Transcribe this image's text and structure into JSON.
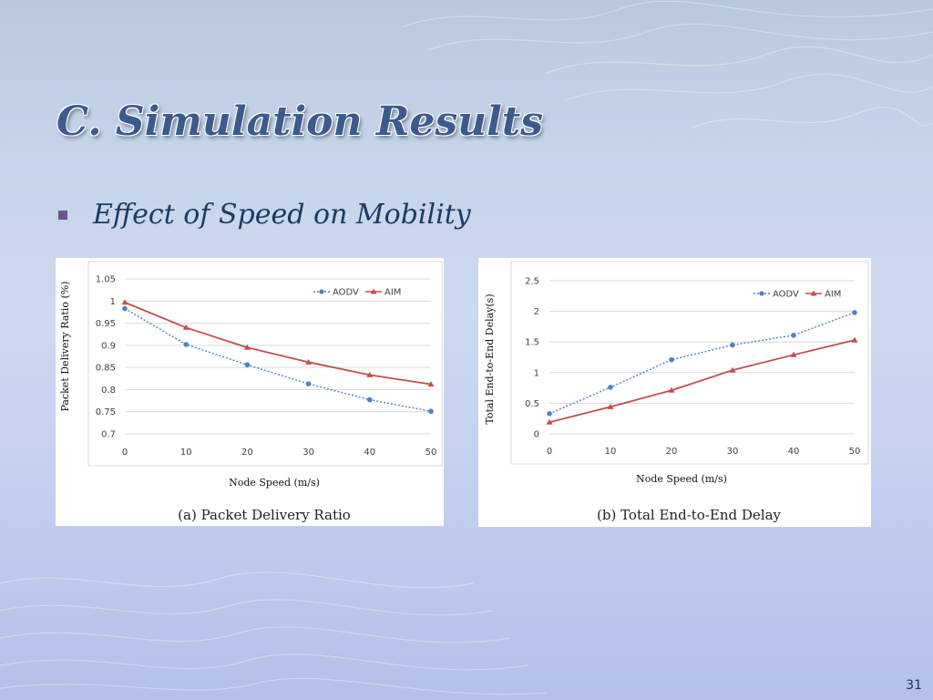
{
  "slide": {
    "title": "C. Simulation Results",
    "bullet": "Effect of Speed on Mobility",
    "page_number": "31"
  },
  "colors": {
    "title": "#3d5a8c",
    "bullet_marker": "#6a5590",
    "aodv": "#4f81bd",
    "aim": "#c0504d"
  },
  "chart_data": [
    {
      "type": "line",
      "caption": "(a)   Packet Delivery Ratio",
      "xlabel": "Node Speed (m/s)",
      "ylabel": "Packet Delivery Ratio (%)",
      "x": [
        0,
        10,
        20,
        30,
        40,
        50
      ],
      "ylim": [
        0.7,
        1.05
      ],
      "yticks": [
        "0.7",
        "0.75",
        "0.8",
        "0.85",
        "0.9",
        "0.95",
        "1",
        "1.05"
      ],
      "xticks": [
        "0",
        "10",
        "20",
        "30",
        "40",
        "50"
      ],
      "legend_position": "top-right",
      "grid": true,
      "series": [
        {
          "name": "AODV",
          "values": [
            0.983,
            0.902,
            0.856,
            0.813,
            0.777,
            0.751
          ]
        },
        {
          "name": "AIM",
          "values": [
            0.997,
            0.94,
            0.895,
            0.862,
            0.833,
            0.812
          ]
        }
      ]
    },
    {
      "type": "line",
      "caption": "(b) Total End-to-End Delay",
      "xlabel": "Node Speed (m/s)",
      "ylabel": "Total End-to-End Delay(s)",
      "x": [
        0,
        10,
        20,
        30,
        40,
        50
      ],
      "ylim": [
        0,
        2.5
      ],
      "yticks": [
        "0",
        "0.5",
        "1",
        "1.5",
        "2",
        "2.5"
      ],
      "xticks": [
        "0",
        "10",
        "20",
        "30",
        "40",
        "50"
      ],
      "legend_position": "top-right",
      "grid": true,
      "series": [
        {
          "name": "AODV",
          "values": [
            0.33,
            0.76,
            1.21,
            1.45,
            1.61,
            1.98
          ]
        },
        {
          "name": "AIM",
          "values": [
            0.19,
            0.44,
            0.71,
            1.04,
            1.29,
            1.53
          ]
        }
      ]
    }
  ]
}
